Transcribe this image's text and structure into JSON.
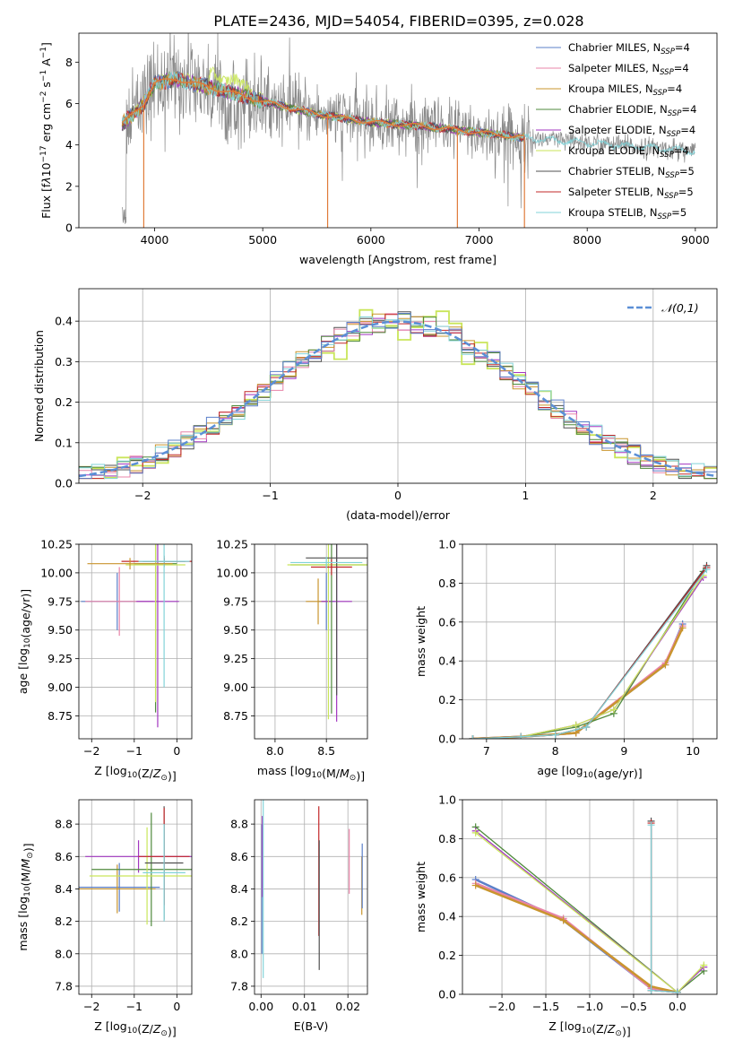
{
  "figure": {
    "title": "PLATE=2436, MJD=54054, FIBERID=0395, z=0.028"
  },
  "colors": {
    "models": [
      "#5b7fc9",
      "#e884a8",
      "#c9952e",
      "#4f8a3c",
      "#a236c0",
      "#c9e55a",
      "#505050",
      "#c3282a",
      "#82d3d8"
    ],
    "data_flux": "#8a8a8a",
    "best_fit": "#e07b39",
    "gaussian": "#5b8fd6",
    "grid": "#b0b0b0"
  },
  "legend_spectrum": [
    {
      "model": "Chabrier MILES",
      "nssp": "4"
    },
    {
      "model": "Salpeter MILES",
      "nssp": "4"
    },
    {
      "model": "Kroupa MILES",
      "nssp": "4"
    },
    {
      "model": "Chabrier ELODIE",
      "nssp": "4"
    },
    {
      "model": "Salpeter ELODIE",
      "nssp": "4"
    },
    {
      "model": "Kroupa ELODIE",
      "nssp": "4"
    },
    {
      "model": "Chabrier STELIB",
      "nssp": "5"
    },
    {
      "model": "Salpeter STELIB",
      "nssp": "5"
    },
    {
      "model": "Kroupa STELIB",
      "nssp": "5"
    }
  ],
  "chart_data": [
    {
      "id": "spectrum",
      "type": "line",
      "xlabel": "wavelength [Angstrom, rest frame]",
      "ylabel_html": "Flux [f<tspan font-style='italic'>λ</tspan>10<tspan dy='-5' font-size='9'>−17</tspan><tspan dy='5'> erg cm</tspan><tspan dy='-5' font-size='9'>−2</tspan><tspan dy='5'> s</tspan><tspan dy='-5' font-size='9'>−1</tspan><tspan dy='5'> A</tspan><tspan dy='-5' font-size='9'>−1</tspan><tspan dy='5'>]</tspan>",
      "xlim": [
        3300,
        9200
      ],
      "ylim": [
        0,
        9.4
      ],
      "xticks": [
        4000,
        5000,
        6000,
        7000,
        8000,
        9000
      ],
      "yticks": [
        0,
        2,
        4,
        6,
        8
      ],
      "continuum": {
        "x": [
          3700,
          3900,
          4000,
          4200,
          4500,
          4800,
          5000,
          5500,
          6000,
          6500,
          7000,
          7500,
          8000,
          8500,
          9000
        ],
        "y": [
          5.0,
          6.0,
          7.0,
          7.2,
          6.8,
          6.4,
          6.1,
          5.5,
          5.1,
          4.9,
          4.6,
          4.3,
          4.1,
          3.9,
          3.7
        ]
      },
      "wavelength_range": [
        3700,
        9000
      ],
      "model_range": [
        3700,
        7420
      ],
      "dropouts": [
        3900,
        5600,
        6800,
        7420
      ]
    },
    {
      "id": "residuals",
      "type": "histogram",
      "xlabel": "(data-model)/error",
      "ylabel": "Normed distribution",
      "xlim": [
        -2.5,
        2.5
      ],
      "ylim": [
        0,
        0.48
      ],
      "xticks": [
        -2,
        -1,
        0,
        1,
        2
      ],
      "yticks": [
        0,
        0.1,
        0.2,
        0.3,
        0.4
      ],
      "bin_width": 0.1,
      "legend": "𝒩(0,1)",
      "gaussian": {
        "mu": 0,
        "sigma": 1
      }
    },
    {
      "id": "age-vs-Z",
      "type": "errorbar",
      "xlabel": "Z [log10(Z/Z⊙)]",
      "ylabel": "age  [log10(age/yr)]",
      "xlim": [
        -2.3,
        0.35
      ],
      "ylim": [
        8.55,
        10.25
      ],
      "xticks": [
        -2,
        -1,
        0
      ],
      "yticks": [
        8.75,
        9.0,
        9.25,
        9.5,
        9.75,
        10.0,
        10.25
      ],
      "points": [
        {
          "c": 0,
          "x": -1.4,
          "y": 9.75,
          "xerr": 0.85,
          "yerr": 0.25
        },
        {
          "c": 1,
          "x": -1.35,
          "y": 9.75,
          "xerr": 0.8,
          "yerr": 0.3
        },
        {
          "c": 3,
          "x": -0.5,
          "y": 10.08,
          "xerr": 0.5,
          "yerr": 1.3
        },
        {
          "c": 4,
          "x": -0.45,
          "y": 9.75,
          "xerr": 0.5,
          "yerr": 1.1
        },
        {
          "c": 5,
          "x": -0.5,
          "y": 10.07,
          "xerr": 0.7,
          "yerr": 1.2
        },
        {
          "c": 6,
          "x": -0.3,
          "y": 10.1,
          "xerr": 0.5,
          "yerr": 0.05
        },
        {
          "c": 7,
          "x": -0.3,
          "y": 10.1,
          "xerr": 1.0,
          "yerr": 0.03
        },
        {
          "c": 8,
          "x": -0.3,
          "y": 10.1,
          "xerr": 0.6,
          "yerr": 1.1
        },
        {
          "c": 2,
          "x": -1.1,
          "y": 10.08,
          "xerr": 1.0,
          "yerr": 0.05
        }
      ]
    },
    {
      "id": "age-vs-mass",
      "type": "errorbar",
      "xlabel": "mass [log10(M/M⊙)]",
      "ylabel": "",
      "xlim": [
        7.8,
        8.9
      ],
      "ylim": [
        8.55,
        10.25
      ],
      "xticks": [
        8.0,
        8.5
      ],
      "yticks": [
        8.75,
        9.0,
        9.25,
        9.5,
        9.75,
        10.0,
        10.25
      ],
      "points": [
        {
          "c": 0,
          "x": 8.5,
          "y": 9.75,
          "xerr": 0.08,
          "yerr": 0.25
        },
        {
          "c": 2,
          "x": 8.42,
          "y": 9.75,
          "xerr": 0.12,
          "yerr": 0.2
        },
        {
          "c": 4,
          "x": 8.6,
          "y": 9.75,
          "xerr": 0.15,
          "yerr": 1.05
        },
        {
          "c": 3,
          "x": 8.55,
          "y": 10.07,
          "xerr": 0.4,
          "yerr": 1.3
        },
        {
          "c": 5,
          "x": 8.52,
          "y": 10.07,
          "xerr": 0.4,
          "yerr": 1.35
        },
        {
          "c": 6,
          "x": 8.6,
          "y": 10.13,
          "xerr": 0.3,
          "yerr": 1.2
        },
        {
          "c": 7,
          "x": 8.55,
          "y": 10.05,
          "xerr": 0.2,
          "yerr": 0.07
        },
        {
          "c": 8,
          "x": 8.5,
          "y": 10.09,
          "xerr": 0.35,
          "yerr": 0.05
        }
      ]
    },
    {
      "id": "mass-weight-vs-age",
      "type": "line",
      "xlabel": "age  [log10(age/yr)]",
      "ylabel": "mass weight",
      "xlim": [
        6.65,
        10.35
      ],
      "ylim": [
        0,
        1.0
      ],
      "xticks": [
        7,
        8,
        9,
        10
      ],
      "yticks": [
        0.0,
        0.2,
        0.4,
        0.6,
        0.8,
        1.0
      ],
      "series": [
        {
          "c": 0,
          "x": [
            6.8,
            7.5,
            8.3,
            9.6,
            9.85
          ],
          "y": [
            0.0,
            0.01,
            0.03,
            0.38,
            0.59
          ]
        },
        {
          "c": 1,
          "x": [
            6.8,
            7.5,
            8.3,
            9.6,
            9.85
          ],
          "y": [
            0.0,
            0.01,
            0.03,
            0.39,
            0.58
          ]
        },
        {
          "c": 2,
          "x": [
            6.8,
            7.5,
            8.3,
            9.6,
            9.85
          ],
          "y": [
            0.0,
            0.01,
            0.03,
            0.38,
            0.57
          ]
        },
        {
          "c": 3,
          "x": [
            6.8,
            7.5,
            8.3,
            8.85,
            10.15
          ],
          "y": [
            0.0,
            0.01,
            0.06,
            0.13,
            0.86
          ]
        },
        {
          "c": 4,
          "x": [
            6.8,
            7.5,
            8.3,
            8.85,
            10.15
          ],
          "y": [
            0.0,
            0.01,
            0.07,
            0.15,
            0.83
          ]
        },
        {
          "c": 5,
          "x": [
            6.8,
            7.5,
            8.3,
            8.85,
            10.15
          ],
          "y": [
            0.0,
            0.01,
            0.07,
            0.15,
            0.84
          ]
        },
        {
          "c": 6,
          "x": [
            6.8,
            7.5,
            8.0,
            8.45,
            10.2
          ],
          "y": [
            0.0,
            0.01,
            0.02,
            0.06,
            0.89
          ]
        },
        {
          "c": 7,
          "x": [
            6.8,
            7.5,
            8.0,
            8.45,
            10.2
          ],
          "y": [
            0.0,
            0.01,
            0.02,
            0.06,
            0.88
          ]
        },
        {
          "c": 8,
          "x": [
            6.8,
            7.5,
            8.0,
            8.45,
            10.2
          ],
          "y": [
            0.0,
            0.01,
            0.02,
            0.06,
            0.87
          ]
        }
      ]
    },
    {
      "id": "mass-vs-Z",
      "type": "errorbar",
      "xlabel": "Z [log10(Z/Z⊙)]",
      "ylabel": "mass [log10(M/M⊙)]",
      "xlim": [
        -2.3,
        0.35
      ],
      "ylim": [
        7.75,
        8.95
      ],
      "xticks": [
        -2,
        -1,
        0
      ],
      "yticks": [
        7.8,
        8.0,
        8.2,
        8.4,
        8.6,
        8.8
      ],
      "points": [
        {
          "c": 0,
          "x": -1.35,
          "y": 8.41,
          "xerr": 0.95,
          "yerr": 0.15
        },
        {
          "c": 2,
          "x": -1.4,
          "y": 8.4,
          "xerr": 0.9,
          "yerr": 0.15
        },
        {
          "c": 4,
          "x": -0.9,
          "y": 8.6,
          "xerr": 1.25,
          "yerr": 0.1
        },
        {
          "c": 3,
          "x": -0.6,
          "y": 8.52,
          "xerr": 1.4,
          "yerr": 0.35
        },
        {
          "c": 5,
          "x": -0.7,
          "y": 8.48,
          "xerr": 1.35,
          "yerr": 0.3
        },
        {
          "c": 6,
          "x": -0.3,
          "y": 8.56,
          "xerr": 0.45,
          "yerr": 0.35
        },
        {
          "c": 7,
          "x": -0.3,
          "y": 8.6,
          "xerr": 0.6,
          "yerr": 0.3
        },
        {
          "c": 8,
          "x": -0.3,
          "y": 8.5,
          "xerr": 0.5,
          "yerr": 0.3
        }
      ]
    },
    {
      "id": "mass-vs-EBV",
      "type": "errorbar",
      "xlabel": "E(B-V)",
      "ylabel": "",
      "xlim": [
        -0.0015,
        0.0245
      ],
      "ylim": [
        7.75,
        8.95
      ],
      "xticks": [
        0.0,
        0.01,
        0.02
      ],
      "yticks": [
        7.8,
        8.0,
        8.2,
        8.4,
        8.6,
        8.8
      ],
      "points": [
        {
          "c": 0,
          "x": 0.0002,
          "y": 8.4,
          "xerr": 0,
          "yerr": 0.4
        },
        {
          "c": 4,
          "x": 0.0003,
          "y": 8.6,
          "xerr": 0,
          "yerr": 0.25
        },
        {
          "c": 8,
          "x": 0.0005,
          "y": 8.4,
          "xerr": 0,
          "yerr": 0.55
        },
        {
          "c": 7,
          "x": 0.0133,
          "y": 8.51,
          "xerr": 0,
          "yerr": 0.4
        },
        {
          "c": 6,
          "x": 0.0134,
          "y": 8.3,
          "xerr": 0,
          "yerr": 0.4
        },
        {
          "c": 1,
          "x": 0.0203,
          "y": 8.57,
          "xerr": 0,
          "yerr": 0.2
        },
        {
          "c": 2,
          "x": 0.0232,
          "y": 8.42,
          "xerr": 0,
          "yerr": 0.18
        },
        {
          "c": 0,
          "x": 0.0233,
          "y": 8.48,
          "xerr": 0,
          "yerr": 0.2
        }
      ]
    },
    {
      "id": "mass-weight-vs-Z",
      "type": "line",
      "xlabel": "Z [log10(Z/Z⊙)]",
      "ylabel": "mass weight",
      "xlim": [
        -2.45,
        0.45
      ],
      "ylim": [
        0,
        1.0
      ],
      "xticks": [
        -2.0,
        -1.5,
        -1.0,
        -0.5,
        0.0
      ],
      "yticks": [
        0.0,
        0.2,
        0.4,
        0.6,
        0.8,
        1.0
      ],
      "series": [
        {
          "c": 0,
          "x": [
            -2.3,
            -1.3,
            -0.3,
            0.0
          ],
          "y": [
            0.59,
            0.38,
            0.03,
            0.01
          ]
        },
        {
          "c": 1,
          "x": [
            -2.3,
            -1.3,
            -0.3,
            0.0
          ],
          "y": [
            0.57,
            0.39,
            0.03,
            0.01
          ]
        },
        {
          "c": 2,
          "x": [
            -2.3,
            -1.3,
            -0.3,
            0.0
          ],
          "y": [
            0.56,
            0.38,
            0.04,
            0.01
          ]
        },
        {
          "c": 3,
          "x": [
            -2.3,
            0.0,
            0.3
          ],
          "y": [
            0.86,
            0.01,
            0.12
          ]
        },
        {
          "c": 4,
          "x": [
            -2.3,
            0.0,
            0.3
          ],
          "y": [
            0.84,
            0.01,
            0.14
          ]
        },
        {
          "c": 5,
          "x": [
            -2.3,
            0.0,
            0.3
          ],
          "y": [
            0.83,
            0.01,
            0.15
          ]
        },
        {
          "c": 6,
          "x": [
            -0.3,
            -0.3,
            0.0
          ],
          "y": [
            0.89,
            0.02,
            0.01
          ]
        },
        {
          "c": 7,
          "x": [
            -0.3,
            -0.3,
            0.0
          ],
          "y": [
            0.88,
            0.02,
            0.01
          ]
        },
        {
          "c": 8,
          "x": [
            -0.3,
            -0.3,
            0.0
          ],
          "y": [
            0.87,
            0.02,
            0.01
          ]
        }
      ]
    }
  ]
}
